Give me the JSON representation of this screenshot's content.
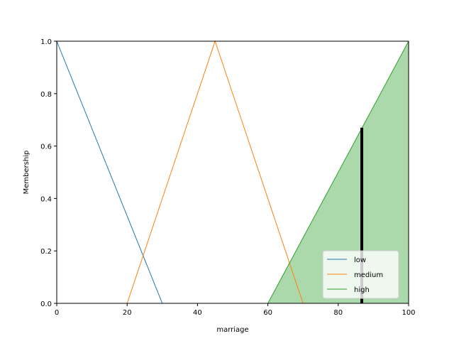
{
  "chart_data": {
    "type": "line",
    "title": "",
    "xlabel": "marriage",
    "ylabel": "Membership",
    "xlim": [
      0,
      100
    ],
    "ylim": [
      0,
      1.0
    ],
    "x_ticks": [
      0,
      20,
      40,
      60,
      80,
      100
    ],
    "y_ticks": [
      0.0,
      0.2,
      0.4,
      0.6,
      0.8,
      1.0
    ],
    "x_tick_labels": [
      "0",
      "20",
      "40",
      "60",
      "80",
      "100"
    ],
    "y_tick_labels": [
      "0.0",
      "0.2",
      "0.4",
      "0.6",
      "0.8",
      "1.0"
    ],
    "grid": false,
    "legend_position": "lower-right",
    "series": [
      {
        "name": "low",
        "color": "#1f77b4",
        "x": [
          0,
          30,
          100
        ],
        "y": [
          1.0,
          0.0,
          0.0
        ]
      },
      {
        "name": "medium",
        "color": "#ff7f0e",
        "x": [
          0,
          20,
          45,
          70,
          100
        ],
        "y": [
          0.0,
          0.0,
          1.0,
          0.0,
          0.0
        ]
      },
      {
        "name": "high",
        "color": "#2ca02c",
        "x": [
          0,
          60,
          100
        ],
        "y": [
          0.0,
          0.0,
          1.0
        ]
      }
    ],
    "activation": {
      "series": "high",
      "fill_color": "#2ca02c",
      "fill_opacity": 0.4,
      "x": [
        60,
        100
      ],
      "y": [
        0.0,
        1.0
      ]
    },
    "input_marker": {
      "x": 86.7,
      "y": 0.67,
      "color": "#000000"
    }
  }
}
